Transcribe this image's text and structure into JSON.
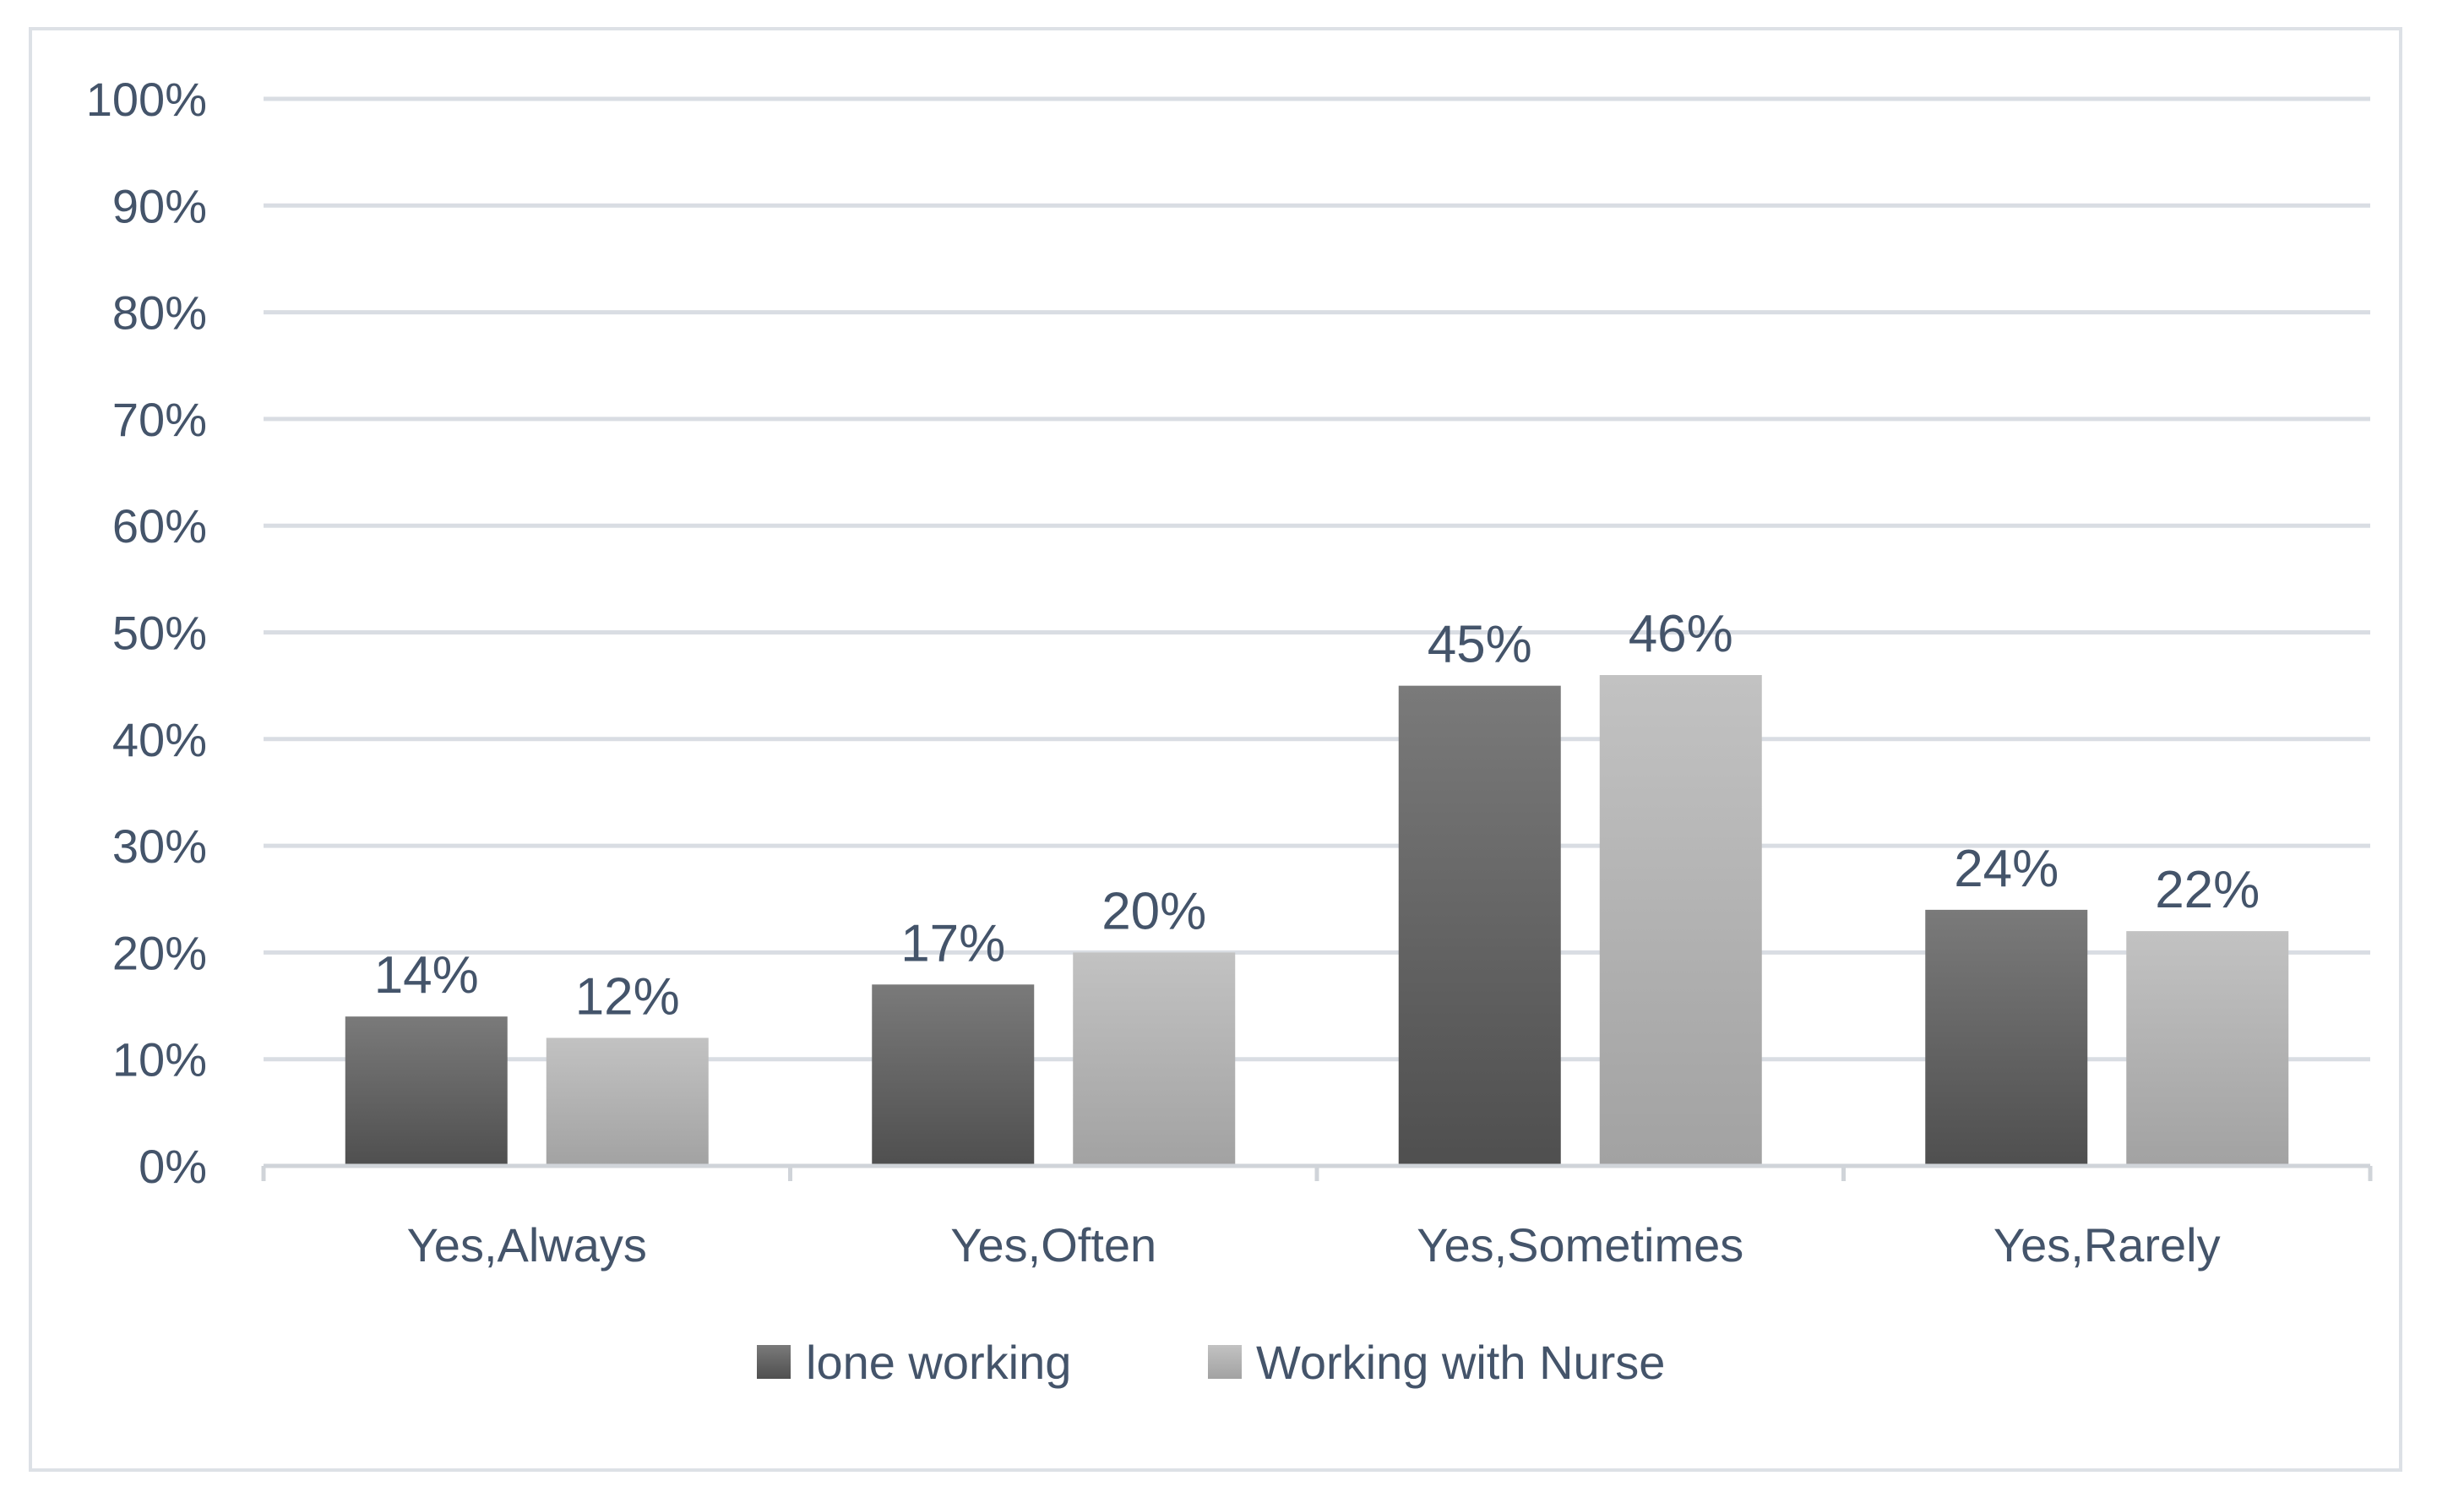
{
  "chart_data": {
    "type": "bar",
    "categories": [
      "Yes,Always",
      "Yes,Often",
      "Yes,Sometimes",
      "Yes,Rarely"
    ],
    "series": [
      {
        "name": "lone working",
        "values": [
          14,
          17,
          45,
          24
        ],
        "labels": [
          "14%",
          "17%",
          "45%",
          "24%"
        ],
        "color_top": "#7a7a7a",
        "color_bottom": "#4f4f4f"
      },
      {
        "name": "Working with Nurse",
        "values": [
          12,
          20,
          46,
          22
        ],
        "labels": [
          "12%",
          "20%",
          "46%",
          "22%"
        ],
        "color_top": "#c2c2c2",
        "color_bottom": "#a2a2a2"
      }
    ],
    "ylim": [
      0,
      100
    ],
    "yticks": [
      0,
      10,
      20,
      30,
      40,
      50,
      60,
      70,
      80,
      90,
      100
    ],
    "ytick_labels": [
      "0%",
      "10%",
      "20%",
      "30%",
      "40%",
      "50%",
      "60%",
      "70%",
      "80%",
      "90%",
      "100%"
    ],
    "grid": true,
    "legend_position": "bottom",
    "title": "",
    "xlabel": "",
    "ylabel": "",
    "colors": {
      "gridline": "#d9dde3",
      "axis": "#d0d4d9",
      "text": "#44546a"
    }
  }
}
